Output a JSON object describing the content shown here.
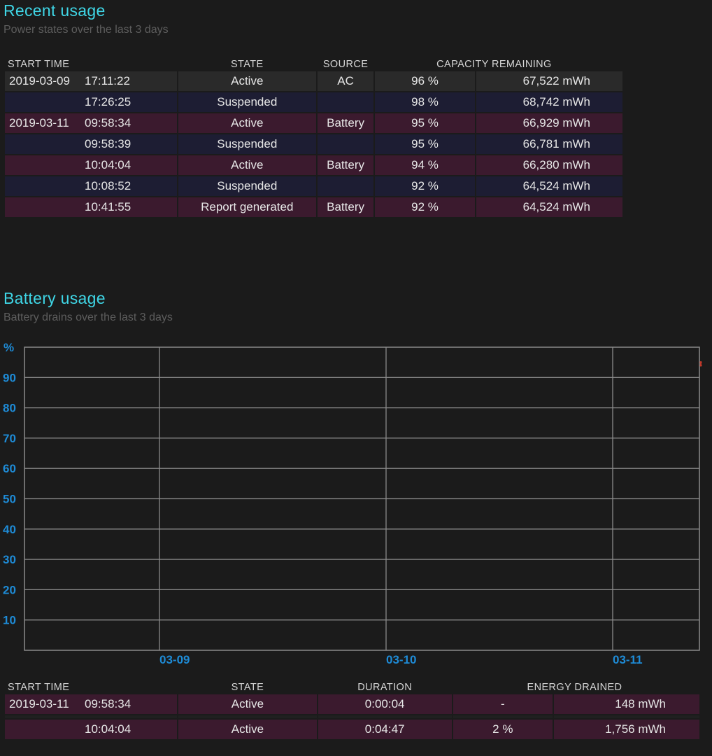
{
  "recent": {
    "title": "Recent usage",
    "subtitle": "Power states over the last 3 days",
    "headers": {
      "start_time": "START TIME",
      "state": "STATE",
      "source": "SOURCE",
      "capacity": "CAPACITY REMAINING"
    },
    "rows": [
      {
        "date": "2019-03-09",
        "time": "17:11:22",
        "state": "Active",
        "source": "AC",
        "percent": "96 %",
        "energy": "67,522 mWh"
      },
      {
        "date": "",
        "time": "17:26:25",
        "state": "Suspended",
        "source": "",
        "percent": "98 %",
        "energy": "68,742 mWh"
      },
      {
        "date": "2019-03-11",
        "time": "09:58:34",
        "state": "Active",
        "source": "Battery",
        "percent": "95 %",
        "energy": "66,929 mWh"
      },
      {
        "date": "",
        "time": "09:58:39",
        "state": "Suspended",
        "source": "",
        "percent": "95 %",
        "energy": "66,781 mWh"
      },
      {
        "date": "",
        "time": "10:04:04",
        "state": "Active",
        "source": "Battery",
        "percent": "94 %",
        "energy": "66,280 mWh"
      },
      {
        "date": "",
        "time": "10:08:52",
        "state": "Suspended",
        "source": "",
        "percent": "92 %",
        "energy": "64,524 mWh"
      },
      {
        "date": "",
        "time": "10:41:55",
        "state": "Report generated",
        "source": "Battery",
        "percent": "92 %",
        "energy": "64,524 mWh"
      }
    ]
  },
  "battery": {
    "title": "Battery usage",
    "subtitle": "Battery drains over the last 3 days",
    "headers": {
      "start_time": "START TIME",
      "state": "STATE",
      "duration": "DURATION",
      "energy": "ENERGY DRAINED"
    },
    "rows": [
      {
        "date": "2019-03-11",
        "time": "09:58:34",
        "state": "Active",
        "duration": "0:00:04",
        "percent": "-",
        "energy": "148 mWh"
      },
      {
        "date": "",
        "time": "10:04:04",
        "state": "Active",
        "duration": "0:04:47",
        "percent": "2 %",
        "energy": "1,756 mWh"
      }
    ]
  },
  "chart_data": {
    "type": "line",
    "title": "",
    "xlabel": "",
    "ylabel": "%",
    "ylim": [
      0,
      100
    ],
    "yticks": [
      10,
      20,
      30,
      40,
      50,
      60,
      70,
      80,
      90
    ],
    "xticks": [
      "03-09",
      "03-10",
      "03-11"
    ],
    "grid": true,
    "series": [
      {
        "x": [
          "2019-03-11 09:58:34",
          "2019-03-11 10:04:04"
        ],
        "y": [
          95,
          94
        ]
      }
    ],
    "colors": {
      "grid": "#8a8a8a",
      "axis_text": "#1e8bd6",
      "series": "#c0392b"
    }
  }
}
